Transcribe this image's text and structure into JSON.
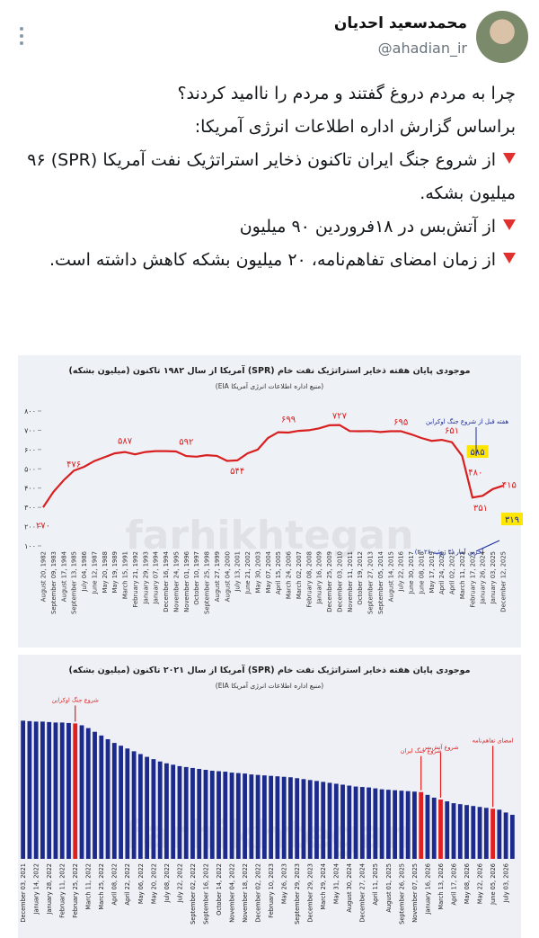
{
  "tweet": {
    "name": "محمدسعید احدیان",
    "handle": "@ahadian_ir",
    "lines": [
      "چرا به مردم دروغ گفتند و مردم را ناامید کردند؟",
      "براساس گزارش اداره اطلاعات انرژی آمریکا:"
    ],
    "bullets": [
      "از شروع جنگ ایران تاکنون ذخایر استراتژیک نفت آمریکا (SPR) ۹۶ میلیون بشکه.",
      "از آتش‌بس در ۱۸فروردین ۹۰ میلیون",
      "از زمان امضای تفاهم‌نامه، ۲۰ میلیون بشکه کاهش داشته است."
    ]
  },
  "chart_data": [
    {
      "type": "line",
      "title": "موجودی پایان هفته ذخایر استراتژیک نفت خام (SPR) آمریکا از سال ۱۹۸۲ تاکنون (میلیون بشکه)",
      "subtitle": "(منبع اداره اطلاعات انرژی آمریکا EIA)",
      "watermark": "farhikhtegan",
      "color": "#d92020",
      "categories": [
        "August 20, 1982",
        "September 09, 1983",
        "August 17, 1984",
        "September 13, 1985",
        "July 04, 1986",
        "June 12, 1987",
        "May 20, 1988",
        "May 19, 1989",
        "March 15, 1991",
        "February 21, 1992",
        "January 29, 1993",
        "January 07, 1994",
        "December 16, 1994",
        "November 24, 1995",
        "November 01, 1996",
        "October 10, 1997",
        "September 25, 1998",
        "August 27, 1999",
        "August 04, 2000",
        "July 13, 2001",
        "June 21, 2002",
        "May 30, 2003",
        "May 07, 2004",
        "April 15, 2005",
        "March 24, 2006",
        "March 02, 2007",
        "February 08, 2008",
        "January 16, 2009",
        "December 25, 2009",
        "December 03, 2010",
        "November 11, 2011",
        "October 19, 2012",
        "September 27, 2013",
        "September 05, 2014",
        "August 14, 2015",
        "July 22, 2016",
        "June 30, 2017",
        "June 08, 2018",
        "May 17, 2019",
        "April 24, 2020",
        "April 02, 2021",
        "March 11, 2022",
        "February 17, 2023",
        "January 26, 2024",
        "January 03, 2025",
        "December 12, 2025"
      ],
      "values": [
        300,
        380,
        440,
        490,
        510,
        540,
        560,
        580,
        587,
        575,
        587,
        592,
        592,
        590,
        566,
        563,
        571,
        567,
        541,
        544,
        580,
        600,
        660,
        690,
        688,
        697,
        700,
        710,
        726,
        727,
        696,
        695,
        696,
        691,
        695,
        695,
        679,
        660,
        645,
        650,
        638,
        566,
        351,
        360,
        395,
        412
      ],
      "ylim": [
        100,
        800
      ],
      "yticks": [
        {
          "value": 100,
          "label": "۱۰۰"
        },
        {
          "value": 200,
          "label": "۲۰۰"
        },
        {
          "value": 300,
          "label": "۳۰۰"
        },
        {
          "value": 400,
          "label": "۴۰۰"
        },
        {
          "value": 500,
          "label": "۵۰۰"
        },
        {
          "value": 600,
          "label": "۶۰۰"
        },
        {
          "value": 700,
          "label": "۷۰۰"
        },
        {
          "value": 800,
          "label": "۸۰۰"
        }
      ],
      "annotations": [
        {
          "value": 270,
          "label": "۲۷۰"
        },
        {
          "value": 476,
          "label": "۴۷۶"
        },
        {
          "value": 587,
          "label": "۵۸۷"
        },
        {
          "value": 592,
          "label": "۵۹۲"
        },
        {
          "value": 544,
          "label": "۵۴۴"
        },
        {
          "value": 699,
          "label": "۶۹۹"
        },
        {
          "value": 727,
          "label": "۷۲۷"
        },
        {
          "value": 695,
          "label": "۶۹۵"
        },
        {
          "value": 651,
          "label": "۶۵۱"
        },
        {
          "value": 585,
          "label": "۵۸۵"
        },
        {
          "value": 480,
          "label": "۴۸۰"
        },
        {
          "value": 351,
          "label": "۳۵۱"
        },
        {
          "value": 415,
          "label": "۴۱۵"
        },
        {
          "value": 319,
          "label": "۳۱۹"
        }
      ],
      "notes": [
        "هفته قبل از شروع جنگ اوکراین",
        "آخرین آمار (۳ ژوئیه ۲۰۲۶)"
      ]
    },
    {
      "type": "bar",
      "title": "موجودی پایان هفته ذخایر استراتژیک نفت خام (SPR) آمریکا از سال ۲۰۲۱ تاکنون (میلیون بشکه)",
      "subtitle": "(منبع اداره اطلاعات انرژی آمریکا EIA)",
      "watermark": "farhikhtegan",
      "color": "#1b2a8c",
      "highlight_color": "#e02020",
      "highlight": [
        8,
        61,
        64,
        72
      ],
      "annotations": [
        "شروع جنگ اوکراین",
        "شروع جنگ ایران",
        "شروع آتش‌بس",
        "امضای تفاهم‌نامه"
      ],
      "categories": [
        "December 03, 2021",
        null,
        "January 14, 2022",
        null,
        "January 28, 2022",
        null,
        "February 11, 2022",
        null,
        "February 25, 2022",
        null,
        "March 11, 2022",
        null,
        "March 25, 2022",
        null,
        "April 08, 2022",
        null,
        "April 22, 2022",
        null,
        "May 06, 2022",
        null,
        "May 20, 2022",
        null,
        "July 08, 2022",
        null,
        "July 22, 2022",
        null,
        "September 02, 2022",
        null,
        "September 16, 2022",
        null,
        "October 14, 2022",
        null,
        "November 04, 2022",
        null,
        "November 18, 2022",
        null,
        "December 02, 2022",
        null,
        "February 10, 2023",
        null,
        "May 26, 2023",
        null,
        "September 29, 2023",
        null,
        "December 29, 2023",
        null,
        "March 29, 2024",
        null,
        "May 31, 2024",
        null,
        "August 30, 2024",
        null,
        "December 27, 2024",
        null,
        "April 11, 2025",
        null,
        "August 01, 2025",
        null,
        "September 26, 2025",
        null,
        "November 07, 2025",
        null,
        "January 16, 2026",
        null,
        "March 13, 2026",
        null,
        "April 17, 2026",
        null,
        "May 08, 2026",
        null,
        "May 22, 2026",
        null,
        "June 05, 2026",
        null,
        "July 03, 2026",
        null
      ],
      "values": [
        598,
        597,
        596,
        596,
        595,
        594,
        594,
        593,
        592,
        588,
        582,
        574,
        566,
        558,
        550,
        544,
        538,
        532,
        526,
        520,
        515,
        510,
        506,
        503,
        500,
        498,
        496,
        494,
        492,
        490,
        489,
        488,
        486,
        485,
        484,
        482,
        481,
        480,
        479,
        478,
        477,
        476,
        474,
        472,
        470,
        468,
        466,
        464,
        462,
        460,
        458,
        456,
        455,
        454,
        452,
        450,
        449,
        448,
        447,
        446,
        445,
        444,
        438,
        432,
        428,
        424,
        420,
        418,
        416,
        414,
        412,
        410,
        408,
        406,
        400,
        395
      ],
      "ylim": [
        300,
        620
      ]
    }
  ]
}
